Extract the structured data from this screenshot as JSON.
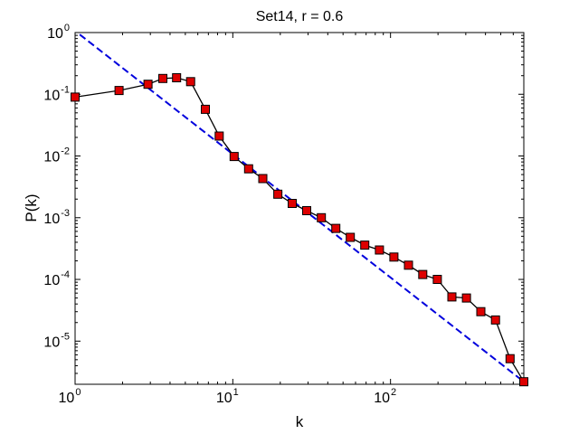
{
  "chart_data": {
    "type": "line",
    "title": "Set14, r = 0.6",
    "xlabel": "k",
    "ylabel": "P(k)",
    "xscale": "log",
    "yscale": "log",
    "xlim": [
      1,
      700
    ],
    "ylim": [
      2e-06,
      1
    ],
    "grid": false,
    "legend": "none",
    "x_ticks": [
      {
        "value": 1,
        "base": "10",
        "exp": "0"
      },
      {
        "value": 10,
        "base": "10",
        "exp": "1"
      },
      {
        "value": 100,
        "base": "10",
        "exp": "2"
      }
    ],
    "y_ticks": [
      {
        "value": 1,
        "base": "10",
        "exp": "0"
      },
      {
        "value": 0.1,
        "base": "10",
        "exp": "-1"
      },
      {
        "value": 0.01,
        "base": "10",
        "exp": "-2"
      },
      {
        "value": 0.001,
        "base": "10",
        "exp": "-3"
      },
      {
        "value": 0.0001,
        "base": "10",
        "exp": "-4"
      },
      {
        "value": 1e-05,
        "base": "10",
        "exp": "-5"
      }
    ],
    "series": [
      {
        "style": "solid-black-line-red-square-markers",
        "color": "#000000",
        "marker_color": "#dd0000",
        "x": [
          1,
          1.9,
          2.9,
          3.6,
          4.4,
          5.4,
          6.7,
          8.2,
          10.2,
          12.6,
          15.5,
          19.3,
          23.8,
          29.4,
          36.4,
          45,
          55.6,
          68.7,
          85,
          105,
          130,
          160,
          198,
          245,
          303,
          374,
          463,
          573,
          700
        ],
        "y": [
          0.09,
          0.115,
          0.145,
          0.18,
          0.185,
          0.16,
          0.057,
          0.021,
          0.0098,
          0.0062,
          0.0043,
          0.0024,
          0.0017,
          0.0013,
          0.001,
          0.00067,
          0.00048,
          0.00036,
          0.0003,
          0.00023,
          0.00017,
          0.00012,
          0.0001,
          5.2e-05,
          5e-05,
          3e-05,
          2.2e-05,
          5.2e-06,
          2.2e-06
        ]
      },
      {
        "style": "dashed",
        "color": "#0000dd",
        "x": [
          1.07,
          700
        ],
        "y": [
          0.93,
          2.2e-06
        ]
      }
    ]
  }
}
